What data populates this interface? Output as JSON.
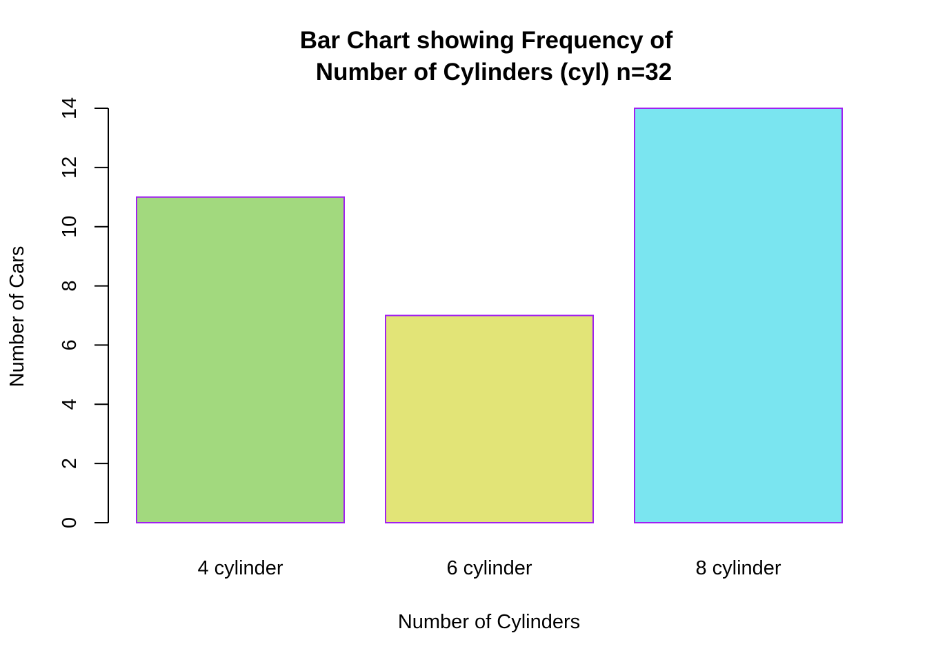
{
  "chart_data": {
    "type": "bar",
    "title": [
      "Bar Chart showing Frequency of",
      "Number of Cylinders (cyl) n=32"
    ],
    "xlabel": "Number of Cylinders",
    "ylabel": "Number of Cars",
    "categories": [
      "4 cylinder",
      "6 cylinder",
      "8 cylinder"
    ],
    "values": [
      11,
      7,
      14
    ],
    "ylim": [
      0,
      14
    ],
    "yticks": [
      0,
      2,
      4,
      6,
      8,
      10,
      12,
      14
    ],
    "colors": {
      "bars": [
        "#a2d97e",
        "#e2e477",
        "#7ae5f0"
      ],
      "bar_border": "#a020f0"
    },
    "grid": false,
    "legend": "none"
  }
}
